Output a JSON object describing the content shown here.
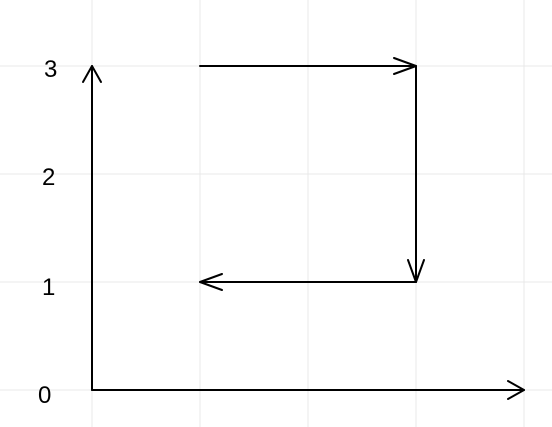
{
  "axes": {
    "y_tick_labels": [
      "0",
      "1",
      "2",
      "3"
    ]
  },
  "colors": {
    "grid": "#e8e8e8",
    "stroke": "#000000",
    "background": "#ffffff"
  }
}
